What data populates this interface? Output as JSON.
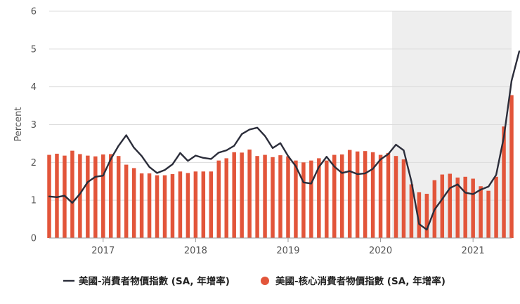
{
  "chart_data": {
    "type": "bar+line",
    "ylabel": "Percent",
    "ylim": [
      0,
      6
    ],
    "yticks": [
      "0",
      "1",
      "2",
      "3",
      "4",
      "5",
      "6"
    ],
    "x_start": "2016-06",
    "x_end": "2021-05",
    "x_tick_labels": [
      {
        "label": "2017",
        "date": "2017-01"
      },
      {
        "label": "2018",
        "date": "2018-01"
      },
      {
        "label": "2019",
        "date": "2019-01"
      },
      {
        "label": "2020",
        "date": "2020-01"
      },
      {
        "label": "2021",
        "date": "2021-01"
      }
    ],
    "shaded_region": {
      "from": "2020-02",
      "to": "2021-05",
      "color": "#eeeeee"
    },
    "grid": "horizontal",
    "legend_placement": "bottom",
    "series": [
      {
        "name": "美國-核心消費者物價指數 (SA, 年增率)",
        "kind": "bar",
        "color": "#e2553a",
        "points": [
          [
            "2016-06",
            2.2
          ],
          [
            "2016-07",
            2.23
          ],
          [
            "2016-08",
            2.18
          ],
          [
            "2016-09",
            2.31
          ],
          [
            "2016-10",
            2.22
          ],
          [
            "2016-11",
            2.18
          ],
          [
            "2016-12",
            2.16
          ],
          [
            "2017-01",
            2.21
          ],
          [
            "2017-02",
            2.22
          ],
          [
            "2017-03",
            2.17
          ],
          [
            "2017-04",
            1.94
          ],
          [
            "2017-05",
            1.85
          ],
          [
            "2017-06",
            1.71
          ],
          [
            "2017-07",
            1.71
          ],
          [
            "2017-08",
            1.66
          ],
          [
            "2017-09",
            1.66
          ],
          [
            "2017-10",
            1.69
          ],
          [
            "2017-11",
            1.76
          ],
          [
            "2017-12",
            1.72
          ],
          [
            "2018-01",
            1.76
          ],
          [
            "2018-02",
            1.76
          ],
          [
            "2018-03",
            1.76
          ],
          [
            "2018-04",
            2.05
          ],
          [
            "2018-05",
            2.11
          ],
          [
            "2018-06",
            2.27
          ],
          [
            "2018-07",
            2.26
          ],
          [
            "2018-08",
            2.34
          ],
          [
            "2018-09",
            2.17
          ],
          [
            "2018-10",
            2.2
          ],
          [
            "2018-11",
            2.14
          ],
          [
            "2018-12",
            2.19
          ],
          [
            "2019-01",
            2.16
          ],
          [
            "2019-02",
            2.05
          ],
          [
            "2019-03",
            2.0
          ],
          [
            "2019-04",
            2.05
          ],
          [
            "2019-05",
            2.11
          ],
          [
            "2019-06",
            2.05
          ],
          [
            "2019-07",
            2.2
          ],
          [
            "2019-08",
            2.21
          ],
          [
            "2019-09",
            2.33
          ],
          [
            "2019-10",
            2.29
          ],
          [
            "2019-11",
            2.3
          ],
          [
            "2019-12",
            2.27
          ],
          [
            "2020-01",
            2.2
          ],
          [
            "2020-02",
            2.25
          ],
          [
            "2020-03",
            2.17
          ],
          [
            "2020-04",
            2.08
          ],
          [
            "2020-05",
            1.42
          ],
          [
            "2020-06",
            1.21
          ],
          [
            "2020-07",
            1.17
          ],
          [
            "2020-08",
            1.53
          ],
          [
            "2020-09",
            1.68
          ],
          [
            "2020-10",
            1.7
          ],
          [
            "2020-11",
            1.6
          ],
          [
            "2020-12",
            1.62
          ],
          [
            "2021-01",
            1.57
          ],
          [
            "2021-02",
            1.37
          ],
          [
            "2021-03",
            1.25
          ],
          [
            "2021-04",
            1.62
          ],
          [
            "2021-05",
            2.95
          ],
          [
            "2021-06",
            3.78
          ]
        ]
      },
      {
        "name": "美國-消費者物價指數 (SA, 年增率)",
        "kind": "line",
        "color": "#2b2d3a",
        "points": [
          [
            "2016-06",
            1.1
          ],
          [
            "2016-07",
            1.08
          ],
          [
            "2016-08",
            1.12
          ],
          [
            "2016-09",
            0.93
          ],
          [
            "2016-10",
            1.17
          ],
          [
            "2016-11",
            1.48
          ],
          [
            "2016-12",
            1.62
          ],
          [
            "2017-01",
            1.65
          ],
          [
            "2017-02",
            2.09
          ],
          [
            "2017-03",
            2.44
          ],
          [
            "2017-04",
            2.72
          ],
          [
            "2017-05",
            2.39
          ],
          [
            "2017-06",
            2.17
          ],
          [
            "2017-07",
            1.88
          ],
          [
            "2017-08",
            1.72
          ],
          [
            "2017-09",
            1.8
          ],
          [
            "2017-10",
            1.95
          ],
          [
            "2017-11",
            2.25
          ],
          [
            "2017-12",
            2.04
          ],
          [
            "2018-01",
            2.18
          ],
          [
            "2018-02",
            2.12
          ],
          [
            "2018-03",
            2.09
          ],
          [
            "2018-04",
            2.26
          ],
          [
            "2018-05",
            2.32
          ],
          [
            "2018-06",
            2.44
          ],
          [
            "2018-07",
            2.75
          ],
          [
            "2018-08",
            2.87
          ],
          [
            "2018-09",
            2.92
          ],
          [
            "2018-10",
            2.7
          ],
          [
            "2018-11",
            2.38
          ],
          [
            "2018-12",
            2.51
          ],
          [
            "2019-01",
            2.17
          ],
          [
            "2019-02",
            1.9
          ],
          [
            "2019-03",
            1.47
          ],
          [
            "2019-04",
            1.44
          ],
          [
            "2019-05",
            1.88
          ],
          [
            "2019-06",
            2.15
          ],
          [
            "2019-07",
            1.89
          ],
          [
            "2019-08",
            1.72
          ],
          [
            "2019-09",
            1.77
          ],
          [
            "2019-10",
            1.69
          ],
          [
            "2019-11",
            1.71
          ],
          [
            "2019-12",
            1.83
          ],
          [
            "2020-01",
            2.08
          ],
          [
            "2020-02",
            2.22
          ],
          [
            "2020-03",
            2.47
          ],
          [
            "2020-04",
            2.32
          ],
          [
            "2020-05",
            1.5
          ],
          [
            "2020-06",
            0.37
          ],
          [
            "2020-07",
            0.22
          ],
          [
            "2020-08",
            0.75
          ],
          [
            "2020-09",
            1.03
          ],
          [
            "2020-10",
            1.32
          ],
          [
            "2020-11",
            1.42
          ],
          [
            "2020-12",
            1.2
          ],
          [
            "2021-01",
            1.16
          ],
          [
            "2021-02",
            1.28
          ],
          [
            "2021-03",
            1.36
          ],
          [
            "2021-04",
            1.67
          ],
          [
            "2021-05",
            2.67
          ],
          [
            "2021-06",
            4.16
          ],
          [
            "2021-07",
            4.94
          ]
        ]
      }
    ]
  }
}
